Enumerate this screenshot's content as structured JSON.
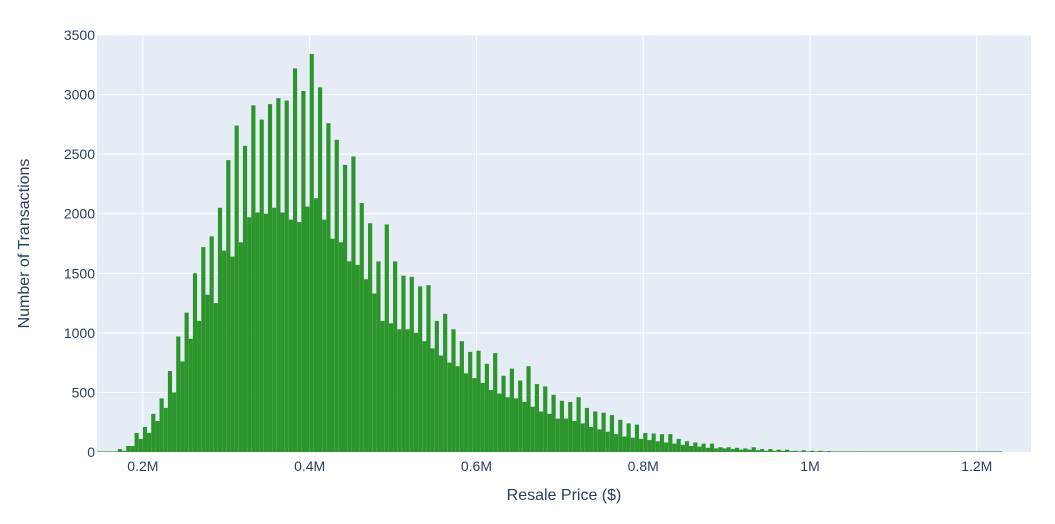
{
  "chart_data": {
    "type": "bar",
    "subtype": "histogram",
    "title": "",
    "xlabel": "Resale Price ($)",
    "ylabel": "Number of Transactions",
    "xlim": [
      145000,
      1265000
    ],
    "ylim": [
      0,
      3500
    ],
    "x_ticks": [
      200000,
      400000,
      600000,
      800000,
      1000000,
      1200000
    ],
    "x_tick_labels": [
      "0.2M",
      "0.4M",
      "0.6M",
      "0.8M",
      "1M",
      "1.2M"
    ],
    "y_ticks": [
      0,
      500,
      1000,
      1500,
      2000,
      2500,
      3000,
      3500
    ],
    "y_tick_labels": [
      "0",
      "500",
      "1000",
      "1500",
      "2000",
      "2500",
      "3000",
      "3500"
    ],
    "grid": true,
    "legend": "none",
    "bin_width": 5000,
    "bin_start": 145000,
    "values": [
      5,
      5,
      5,
      5,
      5,
      25,
      10,
      50,
      50,
      160,
      110,
      210,
      160,
      320,
      260,
      450,
      370,
      680,
      500,
      970,
      760,
      1170,
      950,
      1500,
      1100,
      1720,
      1320,
      1810,
      1250,
      2050,
      1690,
      2450,
      1640,
      2740,
      1760,
      2570,
      1970,
      2910,
      2010,
      2790,
      2000,
      2920,
      2050,
      2970,
      2010,
      2950,
      1950,
      3220,
      1930,
      3030,
      2060,
      3340,
      2130,
      3060,
      1950,
      2760,
      1790,
      2620,
      1760,
      2410,
      1600,
      2480,
      1570,
      2090,
      1450,
      1920,
      1330,
      1600,
      1100,
      1910,
      1080,
      1600,
      1030,
      1480,
      1030,
      1470,
      1000,
      1390,
      930,
      1400,
      870,
      1100,
      810,
      1160,
      750,
      1030,
      720,
      930,
      660,
      840,
      620,
      850,
      580,
      740,
      520,
      830,
      490,
      640,
      460,
      700,
      450,
      600,
      420,
      720,
      380,
      570,
      340,
      550,
      320,
      480,
      280,
      430,
      280,
      420,
      260,
      460,
      240,
      370,
      210,
      340,
      190,
      330,
      170,
      310,
      150,
      270,
      130,
      240,
      120,
      230,
      110,
      160,
      100,
      155,
      90,
      150,
      80,
      150,
      70,
      110,
      60,
      90,
      50,
      80,
      45,
      70,
      35,
      70,
      30,
      40,
      30,
      40,
      25,
      35,
      20,
      30,
      20,
      40,
      15,
      25,
      10,
      25,
      10,
      20,
      10,
      20,
      8,
      10,
      5,
      15,
      5,
      10,
      5,
      10,
      5,
      8,
      5,
      5,
      5,
      5,
      5,
      5,
      5,
      5,
      5,
      5,
      5,
      5,
      5,
      5,
      5,
      5,
      5,
      5,
      5,
      5,
      5,
      5,
      5,
      5,
      5,
      5,
      5,
      5,
      5,
      5,
      5,
      5,
      5,
      5,
      5,
      5,
      5,
      5,
      5,
      5,
      5
    ],
    "colors": {
      "bar": "#2c962c",
      "plot_background": "#e5ecf6",
      "grid": "#ffffff",
      "text": "#2a3f5f"
    }
  }
}
